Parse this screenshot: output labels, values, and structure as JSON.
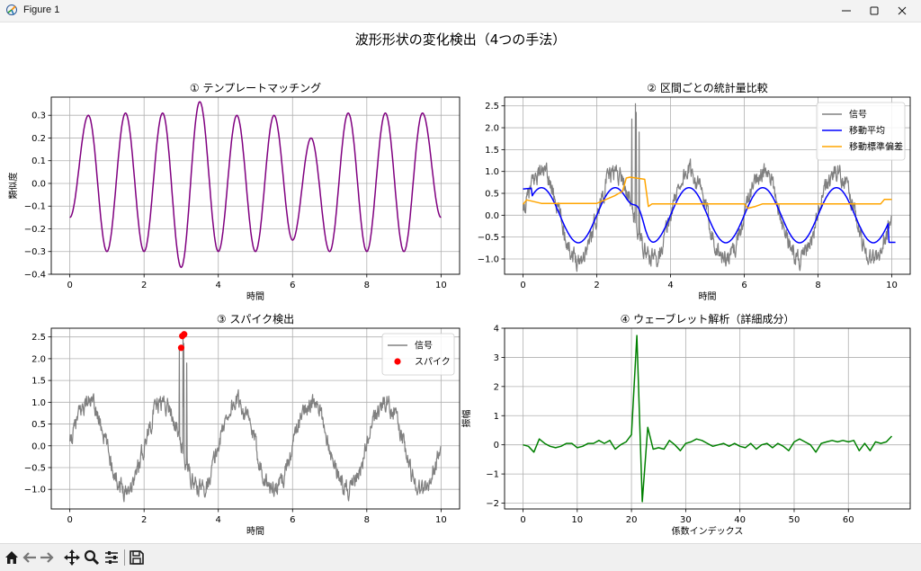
{
  "window": {
    "title": "Figure 1"
  },
  "figure": {
    "suptitle": "波形形状の変化検出（4つの手法）"
  },
  "icons": [
    "app-icon",
    "minimize-icon",
    "maximize-icon",
    "close-icon",
    "home-icon",
    "back-arrow-icon",
    "forward-arrow-icon",
    "pan-icon",
    "zoom-icon",
    "configure-subplots-icon",
    "save-icon"
  ],
  "colors": {
    "purple": "#800080",
    "gray": "#808080",
    "blue": "#0000ff",
    "orange": "#ffa500",
    "red": "#ff0000",
    "green": "#008000"
  },
  "chart_data": [
    {
      "type": "line",
      "title": "① テンプレートマッチング",
      "xlabel": "時間",
      "ylabel": "類似度",
      "xlim": [
        -0.5,
        10.5
      ],
      "ylim": [
        -0.4,
        0.38
      ],
      "xticks": [
        0,
        2,
        4,
        6,
        8,
        10
      ],
      "yticks": [
        -0.4,
        -0.3,
        -0.2,
        -0.1,
        0.0,
        0.1,
        0.2,
        0.3
      ],
      "ytick_labels": [
        "−0.4",
        "−0.3",
        "−0.2",
        "−0.1",
        "0.0",
        "0.1",
        "0.2",
        "0.3"
      ],
      "grid": true,
      "series": [
        {
          "color": "#800080",
          "x": [
            0,
            0.5,
            1.0,
            1.5,
            2.0,
            2.5,
            3.0,
            3.5,
            4.0,
            4.5,
            5.0,
            5.5,
            6.0,
            6.5,
            7.0,
            7.5,
            8.0,
            8.5,
            9.0,
            9.5,
            10.0
          ],
          "values": [
            -0.15,
            0.3,
            -0.3,
            0.31,
            -0.3,
            0.31,
            -0.37,
            0.36,
            -0.3,
            0.3,
            -0.3,
            0.3,
            -0.25,
            0.2,
            -0.3,
            0.31,
            -0.3,
            0.31,
            -0.3,
            0.31,
            -0.15
          ]
        }
      ]
    },
    {
      "type": "line",
      "title": "② 区間ごとの統計量比較",
      "xlabel": "時間",
      "ylabel": "",
      "xlim": [
        -0.5,
        10.5
      ],
      "ylim": [
        -1.35,
        2.7
      ],
      "xticks": [
        0,
        2,
        4,
        6,
        8,
        10
      ],
      "yticks": [
        -1.0,
        -0.5,
        0.0,
        0.5,
        1.0,
        1.5,
        2.0,
        2.5
      ],
      "ytick_labels": [
        "−1.0",
        "−0.5",
        "0.0",
        "0.5",
        "1.0",
        "1.5",
        "2.0",
        "2.5"
      ],
      "grid": true,
      "legend_position": "top-right",
      "series": [
        {
          "name": "信号",
          "color": "#808080",
          "style": "noisy-sine",
          "amplitude": 1.0,
          "period": 2.0,
          "noise": 0.15,
          "spike": {
            "x": [
              2.95,
              3.05,
              3.15
            ],
            "values": [
              2.2,
              2.55,
              1.9
            ]
          }
        },
        {
          "name": "移動平均",
          "color": "#0000ff",
          "style": "smooth-sine",
          "amplitude": 0.63,
          "period": 2.0,
          "x": [
            0,
            0.2,
            10.0,
            10.1
          ],
          "values": [
            0.6,
            0.62,
            -0.62,
            -0.62
          ],
          "bump": {
            "x": 3.15,
            "value": 1.05
          }
        },
        {
          "name": "移動標準偏差",
          "color": "#ffa500",
          "x": [
            0,
            0.1,
            0.5,
            1.0,
            2.0,
            2.5,
            2.7,
            2.8,
            2.9,
            3.3,
            3.4,
            3.5,
            4.0,
            5.0,
            6.0,
            6.1,
            6.3,
            6.5,
            7.0,
            8.0,
            9.0,
            9.7,
            9.8,
            10.0
          ],
          "values": [
            0.25,
            0.35,
            0.27,
            0.27,
            0.27,
            0.45,
            0.55,
            0.85,
            0.87,
            0.82,
            0.2,
            0.26,
            0.26,
            0.26,
            0.26,
            0.16,
            0.2,
            0.26,
            0.26,
            0.26,
            0.26,
            0.26,
            0.36,
            0.36
          ]
        }
      ]
    },
    {
      "type": "line",
      "title": "③ スパイク検出",
      "xlabel": "時間",
      "ylabel": "",
      "xlim": [
        -0.5,
        10.5
      ],
      "ylim": [
        -1.45,
        2.7
      ],
      "xticks": [
        0,
        2,
        4,
        6,
        8,
        10
      ],
      "yticks": [
        -1.0,
        -0.5,
        0.0,
        0.5,
        1.0,
        1.5,
        2.0,
        2.5
      ],
      "ytick_labels": [
        "−1.0",
        "−0.5",
        "0.0",
        "0.5",
        "1.0",
        "1.5",
        "2.0",
        "2.5"
      ],
      "grid": true,
      "legend_position": "top-right",
      "series": [
        {
          "name": "信号",
          "color": "#808080",
          "style": "noisy-sine",
          "amplitude": 1.0,
          "period": 2.0,
          "noise": 0.15,
          "spike": {
            "x": [
              2.95,
              3.05,
              3.15
            ],
            "values": [
              2.2,
              2.55,
              1.9
            ]
          }
        },
        {
          "name": "スパイク",
          "color": "#ff0000",
          "style": "scatter",
          "x": [
            3.0,
            3.03,
            3.08
          ],
          "values": [
            2.25,
            2.52,
            2.56
          ]
        }
      ]
    },
    {
      "type": "line",
      "title": "④ ウェーブレット解析（詳細成分）",
      "xlabel": "係数インデックス",
      "ylabel": "振幅",
      "xlim": [
        -3.4,
        71.4
      ],
      "ylim": [
        -2.2,
        4.0
      ],
      "xticks": [
        0,
        10,
        20,
        30,
        40,
        50,
        60
      ],
      "yticks": [
        -2,
        -1,
        0,
        1,
        2,
        3,
        4
      ],
      "ytick_labels": [
        "−2",
        "−1",
        "0",
        "1",
        "2",
        "3",
        "4"
      ],
      "grid": true,
      "series": [
        {
          "color": "#008000",
          "x": [
            0,
            1,
            2,
            3,
            4,
            5,
            6,
            7,
            8,
            9,
            10,
            11,
            12,
            13,
            14,
            15,
            16,
            17,
            18,
            19,
            20,
            21,
            22,
            23,
            24,
            25,
            26,
            27,
            28,
            29,
            30,
            31,
            32,
            33,
            34,
            35,
            36,
            37,
            38,
            39,
            40,
            41,
            42,
            43,
            44,
            45,
            46,
            47,
            48,
            49,
            50,
            51,
            52,
            53,
            54,
            55,
            56,
            57,
            58,
            59,
            60,
            61,
            62,
            63,
            64,
            65,
            66,
            67,
            68
          ],
          "values": [
            0.0,
            -0.05,
            -0.25,
            0.2,
            0.05,
            -0.05,
            -0.1,
            -0.05,
            0.05,
            0.05,
            -0.1,
            -0.05,
            0.05,
            0.05,
            0.15,
            0.05,
            0.15,
            -0.15,
            0.0,
            0.1,
            0.35,
            3.75,
            -1.95,
            0.6,
            -0.15,
            -0.1,
            -0.15,
            0.15,
            0.0,
            -0.2,
            0.05,
            0.1,
            0.2,
            0.15,
            0.05,
            -0.05,
            0.0,
            0.05,
            -0.05,
            0.05,
            -0.05,
            -0.1,
            0.05,
            -0.15,
            0.0,
            0.05,
            -0.1,
            0.05,
            -0.05,
            -0.2,
            0.1,
            0.2,
            0.1,
            0.0,
            -0.25,
            0.05,
            0.1,
            0.15,
            0.1,
            0.15,
            0.1,
            0.15,
            -0.2,
            0.05,
            -0.2,
            0.1,
            0.05,
            0.1,
            0.3
          ]
        }
      ]
    }
  ]
}
